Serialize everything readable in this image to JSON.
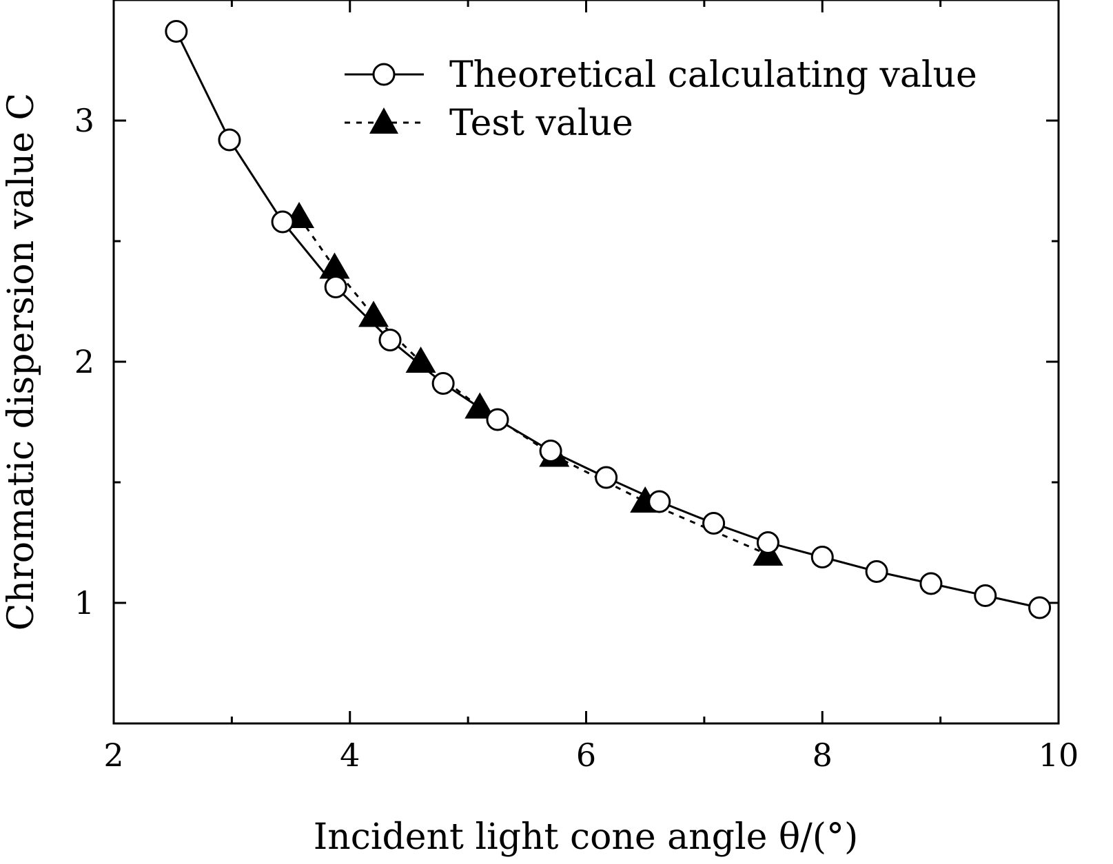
{
  "chart_data": {
    "type": "line",
    "title": "",
    "xlabel": "Incident light cone angle θ/(°)",
    "ylabel": "Chromatic dispersion value C",
    "xlim": [
      2,
      10
    ],
    "ylim": [
      0.5,
      3.5
    ],
    "x_ticks": [
      2,
      4,
      6,
      8,
      10
    ],
    "x_tick_labels": [
      "2",
      "4",
      "6",
      "8",
      "10"
    ],
    "x_minor_ticks": [
      3,
      5,
      7,
      9
    ],
    "y_ticks": [
      1,
      2,
      3
    ],
    "y_tick_labels": [
      "1",
      "2",
      "3"
    ],
    "y_minor_ticks": [
      1.5,
      2.5
    ],
    "grid": false,
    "legend_position": "top-right",
    "series": [
      {
        "name": "Theoretical calculating value",
        "line_style": "solid",
        "marker": "open-circle",
        "x": [
          2.53,
          2.98,
          3.43,
          3.88,
          4.34,
          4.79,
          5.25,
          5.7,
          6.17,
          6.62,
          7.08,
          7.54,
          8.0,
          8.46,
          8.92,
          9.38,
          9.84
        ],
        "y": [
          3.37,
          2.92,
          2.58,
          2.31,
          2.09,
          1.91,
          1.76,
          1.63,
          1.52,
          1.42,
          1.33,
          1.25,
          1.19,
          1.13,
          1.08,
          1.03,
          0.98
        ]
      },
      {
        "name": "Test value",
        "line_style": "dotted",
        "marker": "filled-triangle",
        "x": [
          3.57,
          3.87,
          4.2,
          4.6,
          5.1,
          5.73,
          6.5,
          7.54
        ],
        "y": [
          2.6,
          2.39,
          2.19,
          2.0,
          1.81,
          1.61,
          1.42,
          1.2
        ]
      }
    ]
  }
}
